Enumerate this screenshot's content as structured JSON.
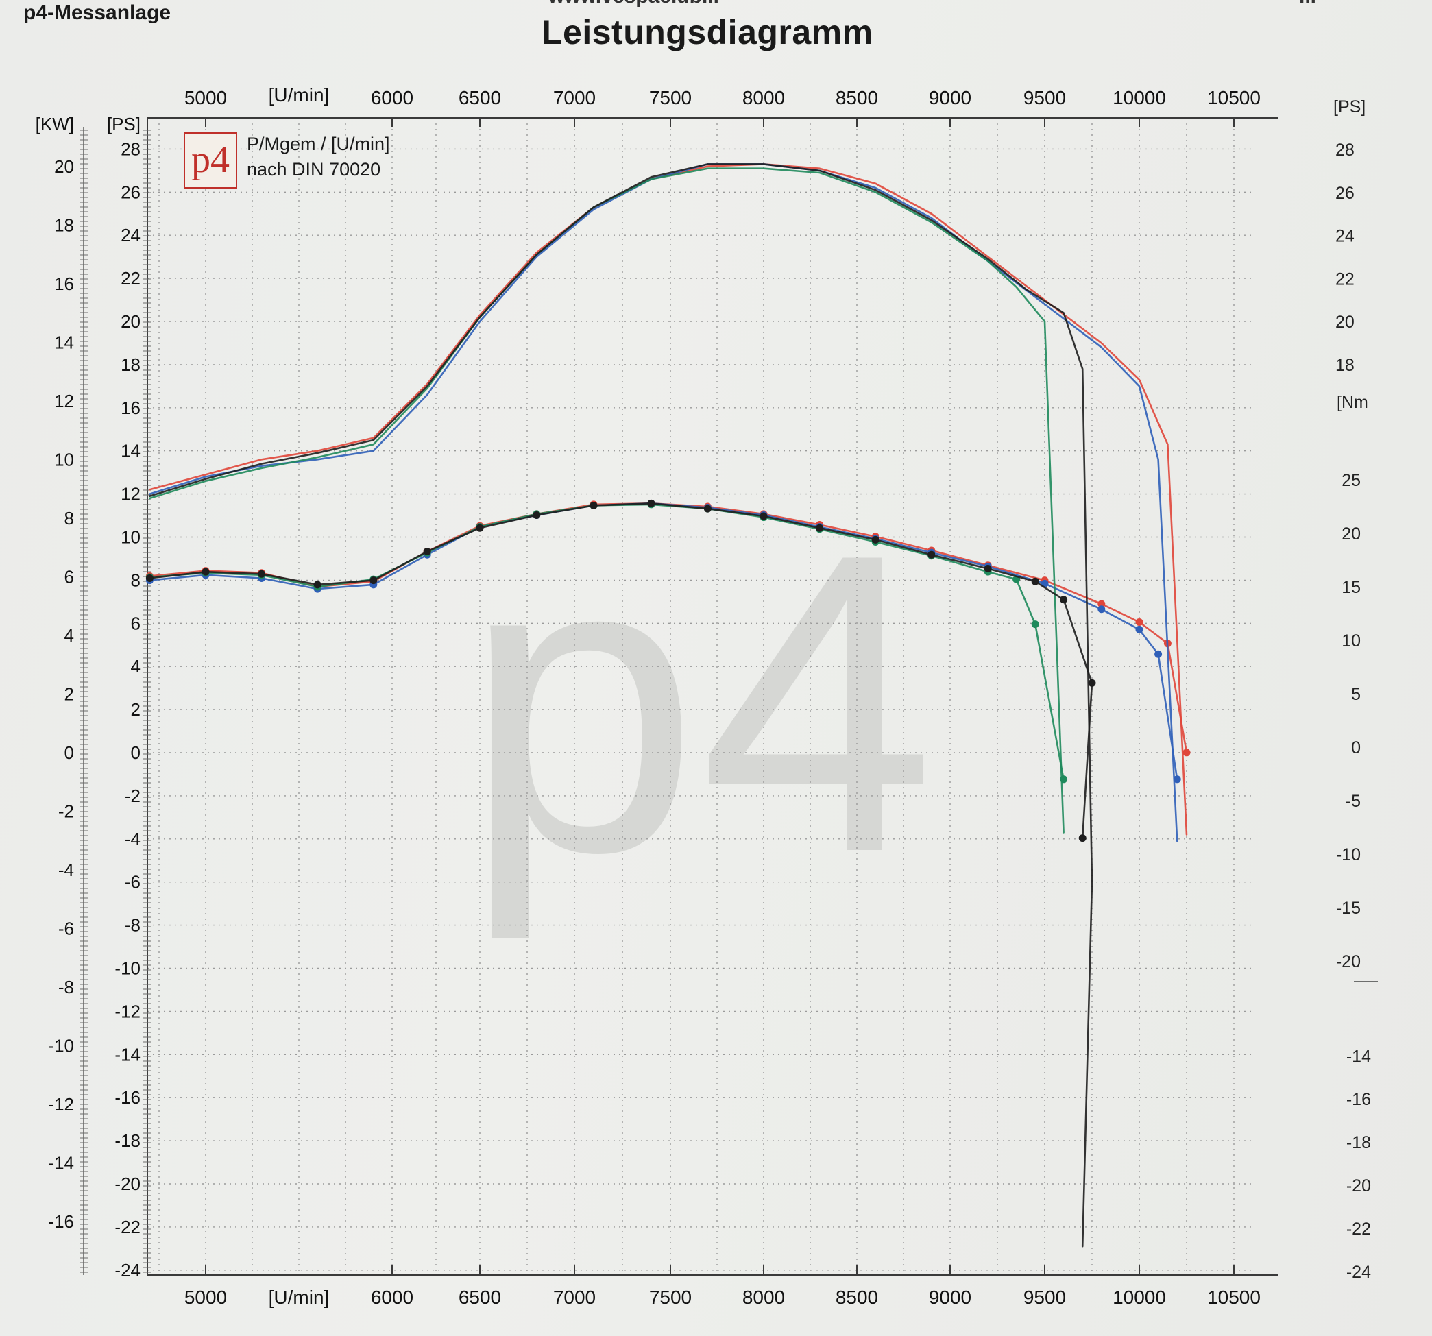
{
  "header": {
    "brand": "p4-Messanlage",
    "website": "www.vespaclub...",
    "corner": "...",
    "title": "Leistungsdiagramm"
  },
  "legend": {
    "logo": "p4",
    "line1": "P/Mgem / [U/min]",
    "line2": "nach DIN 70020"
  },
  "watermark": "p4",
  "colors": {
    "grid": "#9a9a9a",
    "axis": "#3a3a3a",
    "red": "#e0463a",
    "blue": "#2f5fb8",
    "green": "#1f8a5c",
    "black": "#1e1e1e",
    "watermark": "#cfd0cd"
  },
  "chart_data": {
    "type": "line",
    "title": "Leistungsdiagramm",
    "xlabel": "[U/min]",
    "xlim": [
      4700,
      10800
    ],
    "x_ticks": [
      5000,
      6000,
      6500,
      7000,
      7500,
      8000,
      8500,
      9000,
      9500,
      10000,
      10500
    ],
    "y_kw_label": "[KW]",
    "y_kw_ticks": [
      20,
      18,
      16,
      14,
      12,
      10,
      8,
      6,
      4,
      2,
      0,
      -2,
      -4,
      -6,
      -8,
      -10,
      -12,
      -14,
      -16
    ],
    "y_ps_label": "[PS]",
    "y_ps_ticks": [
      28,
      26,
      24,
      22,
      20,
      18,
      16,
      14,
      12,
      10,
      8,
      6,
      4,
      2,
      0,
      -2,
      -4,
      -6,
      -8,
      -10,
      -12,
      -14,
      -16,
      -18,
      -20,
      -22,
      -24
    ],
    "ylim_ps": [
      -24,
      29
    ],
    "right_ps_label": "[PS]",
    "right_ps_ticks": [
      28,
      26,
      24,
      22,
      20,
      18
    ],
    "right_nm_label": "[Nm",
    "right_nm_ticks": [
      25,
      20,
      15,
      10,
      5,
      0,
      -5,
      -10,
      -15,
      -20
    ],
    "right_lower_ticks": [
      -14,
      -16,
      -18,
      -20,
      -22,
      -24
    ],
    "grid": true,
    "legend": "top-left",
    "series": [
      {
        "color": "red",
        "power_ps": [
          [
            4700,
            12.2
          ],
          [
            5000,
            12.9
          ],
          [
            5300,
            13.6
          ],
          [
            5600,
            14.0
          ],
          [
            5900,
            14.6
          ],
          [
            6200,
            17.1
          ],
          [
            6500,
            20.3
          ],
          [
            6800,
            23.2
          ],
          [
            7100,
            25.3
          ],
          [
            7400,
            26.6
          ],
          [
            7700,
            27.2
          ],
          [
            8000,
            27.3
          ],
          [
            8300,
            27.1
          ],
          [
            8600,
            26.4
          ],
          [
            8900,
            25.0
          ],
          [
            9200,
            23.0
          ],
          [
            9500,
            21.0
          ],
          [
            9800,
            19.0
          ],
          [
            10000,
            17.3
          ],
          [
            10150,
            14.3
          ],
          [
            10250,
            -3.8
          ]
        ],
        "torque_nm": [
          [
            4700,
            16.0
          ],
          [
            5000,
            16.5
          ],
          [
            5300,
            16.3
          ],
          [
            5600,
            15.0
          ],
          [
            5900,
            15.5
          ],
          [
            6200,
            18.3
          ],
          [
            6500,
            20.7
          ],
          [
            6800,
            21.8
          ],
          [
            7100,
            22.7
          ],
          [
            7400,
            22.8
          ],
          [
            7700,
            22.5
          ],
          [
            8000,
            21.8
          ],
          [
            8300,
            20.8
          ],
          [
            8600,
            19.7
          ],
          [
            8900,
            18.4
          ],
          [
            9200,
            17.0
          ],
          [
            9500,
            15.6
          ],
          [
            9800,
            13.4
          ],
          [
            10000,
            11.7
          ],
          [
            10150,
            9.7
          ],
          [
            10250,
            -0.5
          ]
        ]
      },
      {
        "color": "blue",
        "power_ps": [
          [
            4700,
            12.0
          ],
          [
            5000,
            12.8
          ],
          [
            5300,
            13.3
          ],
          [
            5600,
            13.6
          ],
          [
            5900,
            14.0
          ],
          [
            6200,
            16.6
          ],
          [
            6500,
            20.0
          ],
          [
            6800,
            23.0
          ],
          [
            7100,
            25.2
          ],
          [
            7400,
            26.6
          ],
          [
            7700,
            27.3
          ],
          [
            8000,
            27.3
          ],
          [
            8300,
            27.0
          ],
          [
            8600,
            26.2
          ],
          [
            8900,
            24.8
          ],
          [
            9200,
            22.8
          ],
          [
            9500,
            20.8
          ],
          [
            9800,
            18.8
          ],
          [
            10000,
            17.0
          ],
          [
            10100,
            13.6
          ],
          [
            10200,
            -4.1
          ]
        ],
        "torque_nm": [
          [
            4700,
            15.6
          ],
          [
            5000,
            16.1
          ],
          [
            5300,
            15.8
          ],
          [
            5600,
            14.8
          ],
          [
            5900,
            15.2
          ],
          [
            6200,
            18.0
          ],
          [
            6500,
            20.6
          ],
          [
            6800,
            21.7
          ],
          [
            7100,
            22.6
          ],
          [
            7400,
            22.8
          ],
          [
            7700,
            22.4
          ],
          [
            8000,
            21.7
          ],
          [
            8300,
            20.6
          ],
          [
            8600,
            19.5
          ],
          [
            8900,
            18.2
          ],
          [
            9200,
            16.9
          ],
          [
            9500,
            15.3
          ],
          [
            9800,
            12.9
          ],
          [
            10000,
            11.0
          ],
          [
            10100,
            8.7
          ],
          [
            10200,
            -3.0
          ]
        ]
      },
      {
        "color": "green",
        "power_ps": [
          [
            4700,
            11.8
          ],
          [
            5000,
            12.6
          ],
          [
            5300,
            13.2
          ],
          [
            5600,
            13.7
          ],
          [
            5900,
            14.3
          ],
          [
            6200,
            16.9
          ],
          [
            6500,
            20.2
          ],
          [
            6800,
            23.1
          ],
          [
            7100,
            25.3
          ],
          [
            7400,
            26.6
          ],
          [
            7700,
            27.1
          ],
          [
            8000,
            27.1
          ],
          [
            8300,
            26.9
          ],
          [
            8600,
            26.0
          ],
          [
            8900,
            24.6
          ],
          [
            9200,
            22.8
          ],
          [
            9350,
            21.6
          ],
          [
            9500,
            20.0
          ],
          [
            9600,
            -3.7
          ]
        ],
        "torque_nm": [
          [
            4700,
            15.9
          ],
          [
            5000,
            16.3
          ],
          [
            5300,
            16.1
          ],
          [
            5600,
            15.0
          ],
          [
            5900,
            15.7
          ],
          [
            6200,
            18.2
          ],
          [
            6500,
            20.6
          ],
          [
            6800,
            21.8
          ],
          [
            7100,
            22.6
          ],
          [
            7400,
            22.7
          ],
          [
            7700,
            22.3
          ],
          [
            8000,
            21.5
          ],
          [
            8300,
            20.4
          ],
          [
            8600,
            19.2
          ],
          [
            8900,
            17.9
          ],
          [
            9200,
            16.4
          ],
          [
            9350,
            15.7
          ],
          [
            9450,
            11.5
          ],
          [
            9600,
            -3.0
          ]
        ]
      },
      {
        "color": "black",
        "power_ps": [
          [
            4700,
            11.9
          ],
          [
            5000,
            12.7
          ],
          [
            5300,
            13.4
          ],
          [
            5600,
            13.9
          ],
          [
            5900,
            14.5
          ],
          [
            6200,
            17.0
          ],
          [
            6500,
            20.2
          ],
          [
            6800,
            23.1
          ],
          [
            7100,
            25.3
          ],
          [
            7400,
            26.7
          ],
          [
            7700,
            27.3
          ],
          [
            8000,
            27.3
          ],
          [
            8300,
            27.0
          ],
          [
            8600,
            26.1
          ],
          [
            8900,
            24.7
          ],
          [
            9200,
            22.9
          ],
          [
            9400,
            21.5
          ],
          [
            9600,
            20.4
          ],
          [
            9700,
            17.8
          ],
          [
            9750,
            -6.0
          ],
          [
            9700,
            -22.9
          ]
        ],
        "torque_nm": [
          [
            4700,
            15.8
          ],
          [
            5000,
            16.4
          ],
          [
            5300,
            16.2
          ],
          [
            5600,
            15.2
          ],
          [
            5900,
            15.6
          ],
          [
            6200,
            18.3
          ],
          [
            6500,
            20.5
          ],
          [
            6800,
            21.7
          ],
          [
            7100,
            22.6
          ],
          [
            7400,
            22.8
          ],
          [
            7700,
            22.3
          ],
          [
            8000,
            21.6
          ],
          [
            8300,
            20.5
          ],
          [
            8600,
            19.4
          ],
          [
            8900,
            18.0
          ],
          [
            9200,
            16.7
          ],
          [
            9450,
            15.5
          ],
          [
            9600,
            13.8
          ],
          [
            9750,
            6.0
          ],
          [
            9700,
            -8.5
          ]
        ]
      }
    ]
  }
}
